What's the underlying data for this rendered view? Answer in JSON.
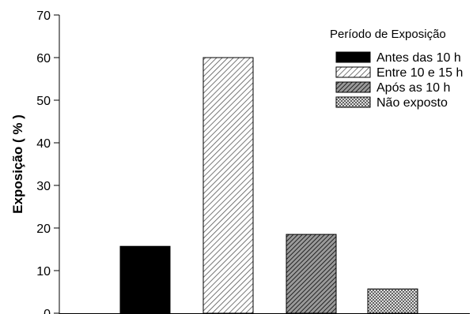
{
  "chart_data": {
    "type": "bar",
    "ylabel": "Exposição ( % )",
    "xlabel": "",
    "ylim": [
      0,
      70
    ],
    "yticks": [
      0,
      10,
      20,
      30,
      40,
      50,
      60,
      70
    ],
    "grid": false,
    "legend": {
      "title": "Período de Exposição",
      "placement": "top-right"
    },
    "series": [
      {
        "name": "Antes das 10 h",
        "value": 15.7,
        "fill": "#000000",
        "pattern": "solid"
      },
      {
        "name": "Entre 10 e 15 h",
        "value": 60,
        "fill": "#bdbdbd",
        "pattern": "hatch-light"
      },
      {
        "name": "Após as 10 h",
        "value": 18.5,
        "fill": "#6a6a6a",
        "pattern": "hatch-dark"
      },
      {
        "name": "Não exposto",
        "value": 5.7,
        "fill": "#d9d9d9",
        "pattern": "crosshatch"
      }
    ]
  }
}
